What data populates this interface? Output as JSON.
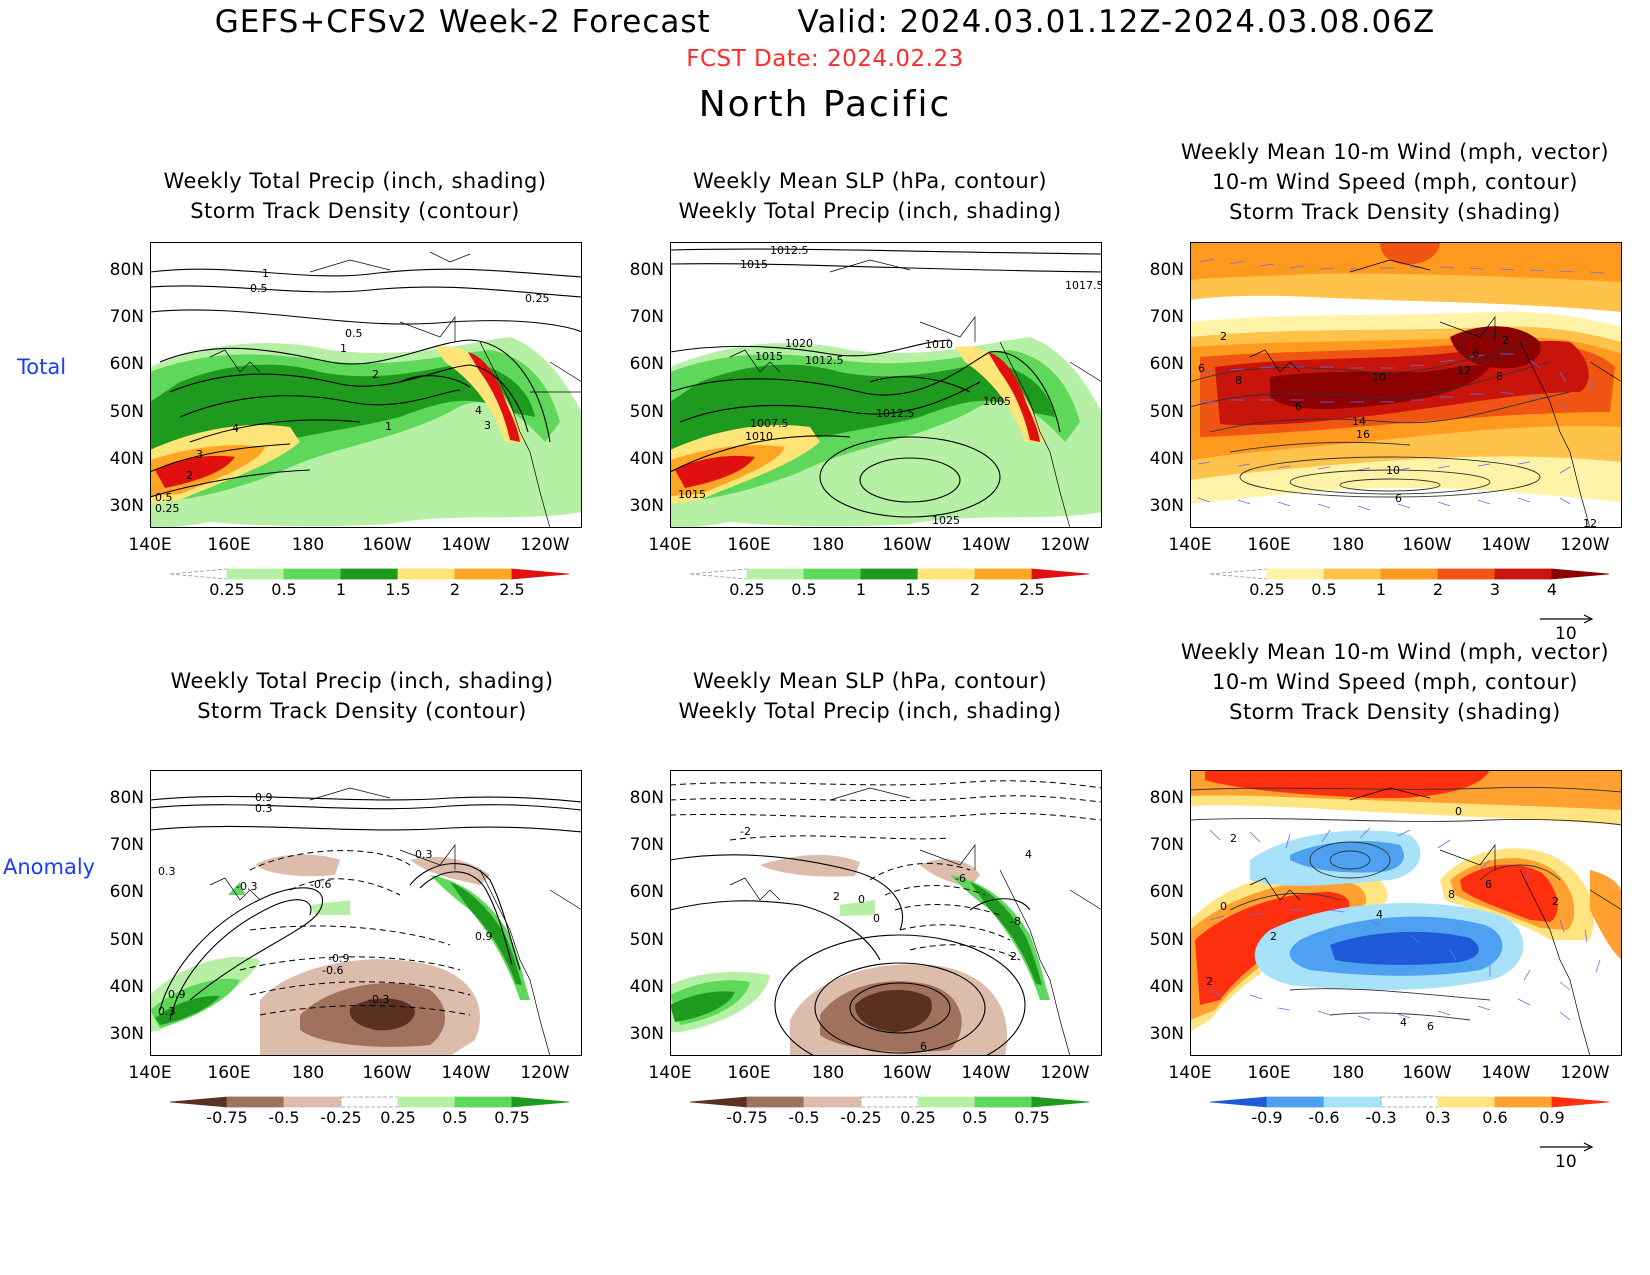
{
  "header": {
    "title": "GEFS+CFSv2 Week-2 Forecast        Valid: 2024.03.01.12Z-2024.03.08.06Z",
    "fcst_date": "FCST Date: 2024.02.23",
    "region": "North Pacific"
  },
  "rows": {
    "total": "Total",
    "anomaly": "Anomaly"
  },
  "panel_titles": {
    "precip_storm": "Weekly Total Precip (inch, shading)\nStorm Track Density (contour)",
    "slp_precip": "Weekly Mean SLP (hPa, contour)\nWeekly Total Precip (inch, shading)",
    "wind_storm": "Weekly Mean 10-m Wind (mph, vector)\n10-m Wind Speed (mph, contour)\nStorm Track Density (shading)"
  },
  "axes": {
    "lat_labels": [
      "80N",
      "70N",
      "60N",
      "50N",
      "40N",
      "30N"
    ],
    "lon_labels": [
      "140E",
      "160E",
      "180",
      "160W",
      "140W",
      "120W"
    ]
  },
  "colorbars": {
    "total_precip": {
      "labels": [
        "0.25",
        "0.5",
        "1",
        "1.5",
        "2",
        "2.5"
      ],
      "colors": [
        "#ffffff",
        "#b5f0a5",
        "#5fd75a",
        "#1e9b1e",
        "#ffe478",
        "#ffa524",
        "#e01010"
      ]
    },
    "total_storm": {
      "labels": [
        "0.25",
        "0.5",
        "1",
        "2",
        "3",
        "4"
      ],
      "colors": [
        "#ffffff",
        "#fff3a8",
        "#ffc24a",
        "#ff9a1e",
        "#f05514",
        "#c8140a",
        "#8c0000"
      ]
    },
    "anom_precip": {
      "labels": [
        "-0.75",
        "-0.5",
        "-0.25",
        "0.25",
        "0.5",
        "0.75"
      ],
      "colors": [
        "#5a3020",
        "#a0725e",
        "#dcbcaa",
        "#ffffff",
        "#b5f0a5",
        "#5fd75a",
        "#1e9b1e"
      ]
    },
    "anom_storm": {
      "labels": [
        "-0.9",
        "-0.6",
        "-0.3",
        "0.3",
        "0.6",
        "0.9"
      ],
      "colors": [
        "#1e5ad8",
        "#4ea0f0",
        "#a8e2f8",
        "#ffffff",
        "#ffe480",
        "#ffa030",
        "#ff3010"
      ]
    }
  },
  "vector_ref": "10",
  "contour_labels": {
    "p1": [
      "1",
      "0.5",
      "0.25",
      "0.5",
      "1",
      "2",
      "4",
      "1",
      "4",
      "3",
      "3",
      "2",
      "0.5",
      "0.25"
    ],
    "p2": [
      "1012.5",
      "1015",
      "1017.5",
      "1020",
      "1015",
      "1012.5",
      "1010",
      "1007.5",
      "1010",
      "1012.5",
      "1005",
      "1015",
      "1025"
    ],
    "p3": [
      "2",
      "6",
      "8",
      "6",
      "10",
      "12",
      "8",
      "2",
      "14",
      "16",
      "10",
      "6",
      "12",
      "6"
    ],
    "p4": [
      "0.9",
      "0.3",
      "0.3",
      "-0.3",
      "-0.6",
      "0.3",
      "-0.9",
      "-0.6",
      "-0.3",
      "0.9",
      "0.9",
      "0.3"
    ],
    "p5": [
      "-2",
      "2",
      "4",
      "-6",
      "-8",
      "2",
      "0",
      "0",
      "6"
    ],
    "p6": [
      "0",
      "2",
      "4",
      "8",
      "6",
      "2",
      "2",
      "2",
      "4",
      "6",
      "0"
    ]
  }
}
